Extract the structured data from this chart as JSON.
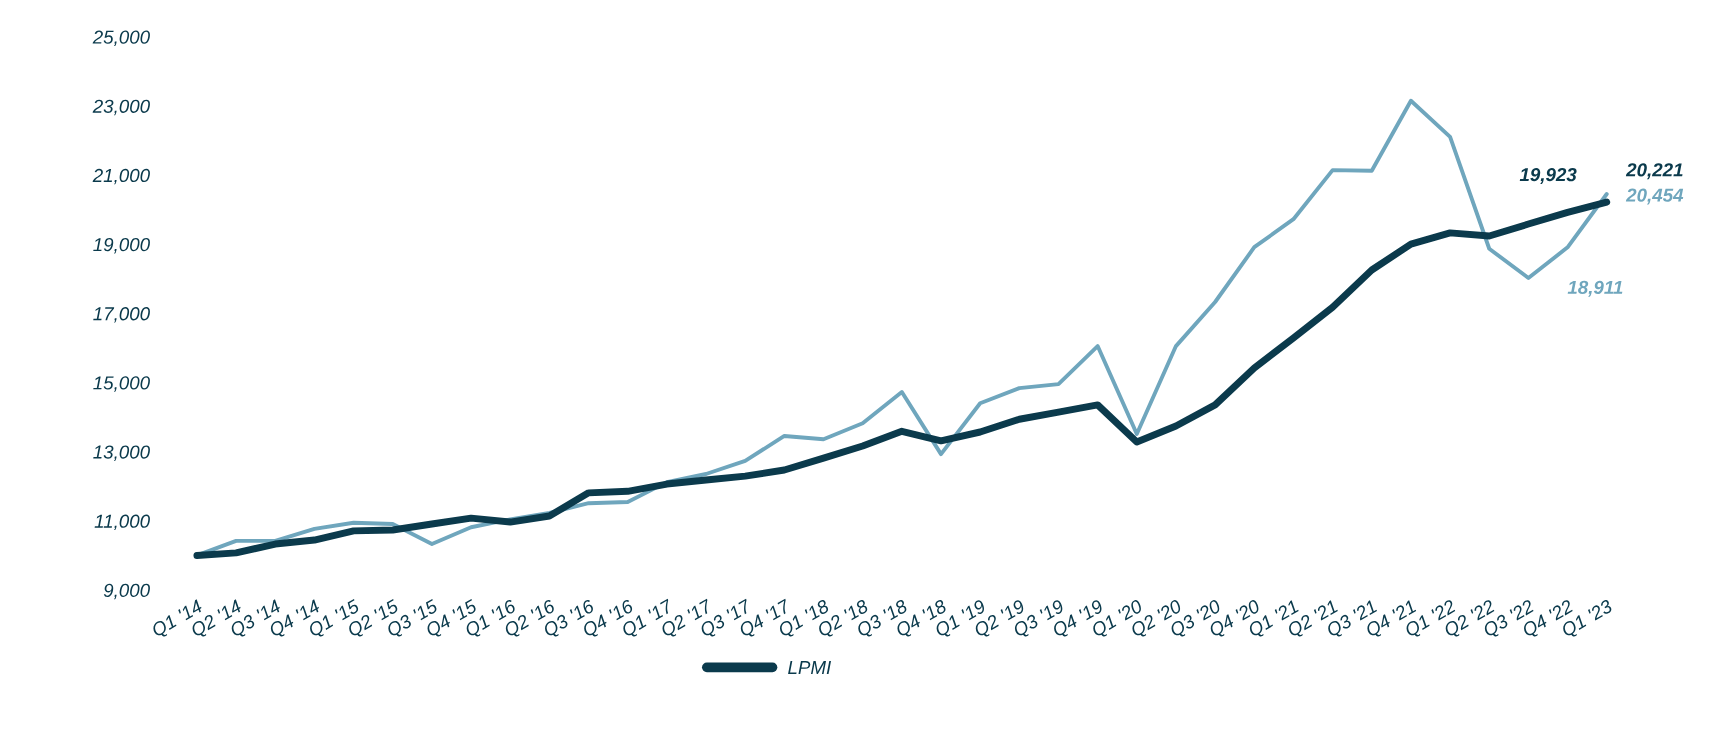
{
  "chart_data": {
    "type": "line",
    "categories": [
      "Q1 '14",
      "Q2 '14",
      "Q3 '14",
      "Q4 '14",
      "Q1 '15",
      "Q2 '15",
      "Q3 '15",
      "Q4 '15",
      "Q1 '16",
      "Q2 '16",
      "Q3 '16",
      "Q4 '16",
      "Q1 '17",
      "Q2 '17",
      "Q3 '17",
      "Q4 '17",
      "Q1 '18",
      "Q2 '18",
      "Q3 '18",
      "Q4 '18",
      "Q1 '19",
      "Q2 '19",
      "Q3 '19",
      "Q4 '19",
      "Q1 '20",
      "Q2 '20",
      "Q3 '20",
      "Q4 '20",
      "Q1 '21",
      "Q2 '21",
      "Q3 '21",
      "Q4 '21",
      "Q1 '22",
      "Q2 '22",
      "Q3 '22",
      "Q4 '22",
      "Q1 '23"
    ],
    "series": [
      {
        "name": "LPMI",
        "color": "#0b3a4c",
        "values": [
          10000,
          10075,
          10330,
          10445,
          10710,
          10735,
          10910,
          11080,
          10965,
          11140,
          11810,
          11855,
          12065,
          12180,
          12295,
          12470,
          12815,
          13165,
          13590,
          13315,
          13570,
          13940,
          14145,
          14355,
          13280,
          13745,
          14355,
          15420,
          16290,
          17180,
          18255,
          19005,
          19330,
          19240,
          19585,
          19923,
          20221
        ],
        "value_labels": [
          null,
          null,
          null,
          null,
          null,
          null,
          null,
          null,
          null,
          null,
          null,
          null,
          null,
          null,
          null,
          null,
          null,
          null,
          null,
          null,
          null,
          null,
          null,
          null,
          null,
          null,
          null,
          null,
          null,
          null,
          null,
          null,
          null,
          null,
          null,
          "19,923",
          "20,221"
        ]
      },
      {
        "color": "#6fa6bd",
        "values": [
          10000,
          10420,
          10420,
          10770,
          10945,
          10910,
          10330,
          10815,
          11045,
          11230,
          11510,
          11545,
          12120,
          12355,
          12735,
          13455,
          13360,
          13825,
          14725,
          12930,
          14400,
          14840,
          14955,
          16055,
          13510,
          16055,
          17330,
          18915,
          19725,
          21145,
          21125,
          23150,
          22105,
          18870,
          18025,
          18911,
          20454
        ],
        "value_labels": [
          null,
          null,
          null,
          null,
          null,
          null,
          null,
          null,
          null,
          null,
          null,
          null,
          null,
          null,
          null,
          null,
          null,
          null,
          null,
          null,
          null,
          null,
          null,
          null,
          null,
          null,
          null,
          null,
          null,
          null,
          null,
          null,
          null,
          null,
          null,
          "18,911",
          "20,454"
        ]
      }
    ],
    "ylim": [
      9000,
      25000
    ],
    "yticks": [
      {
        "value": 9000,
        "label": "9,000"
      },
      {
        "value": 11000,
        "label": "11,000"
      },
      {
        "value": 13000,
        "label": "13,000"
      },
      {
        "value": 15000,
        "label": "15,000"
      },
      {
        "value": 17000,
        "label": "17,000"
      },
      {
        "value": 19000,
        "label": "19,000"
      },
      {
        "value": 21000,
        "label": "21,000"
      },
      {
        "value": 23000,
        "label": "23,000"
      },
      {
        "value": 25000,
        "label": "25,000"
      }
    ],
    "grid": false,
    "legend": "bottom",
    "line_style": "solid"
  }
}
